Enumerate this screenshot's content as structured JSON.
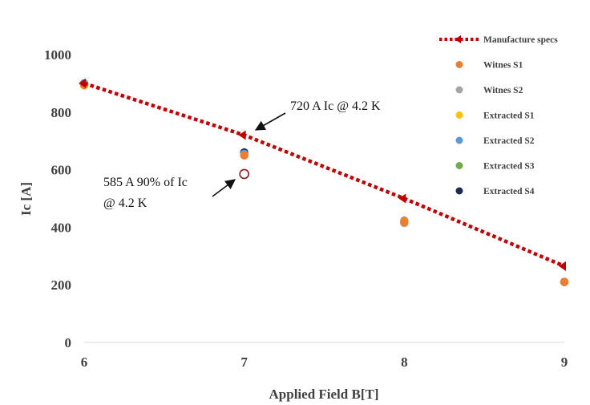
{
  "chart_data": {
    "type": "scatter",
    "title": "",
    "xlabel": "Applied Field B[T]",
    "ylabel": "Ic [A]",
    "xlim": [
      6,
      9
    ],
    "ylim": [
      0,
      1000
    ],
    "xticks": [
      6,
      7,
      8,
      9
    ],
    "yticks": [
      0,
      200,
      400,
      600,
      800,
      1000
    ],
    "legend_position": "top-right",
    "series": [
      {
        "name": "Manufacture specs",
        "style": "dotted-line-with-markers",
        "color": "#c00000",
        "x": [
          6,
          7,
          8,
          9
        ],
        "y": [
          900,
          720,
          500,
          265
        ]
      },
      {
        "name": "Witnes S1",
        "color": "#ed7d31",
        "x": [
          6,
          7,
          8,
          9
        ],
        "y": [
          895,
          650,
          418,
          210
        ]
      },
      {
        "name": "Witnes S2",
        "color": "#a5a5a5",
        "x": [
          6,
          7,
          8,
          9
        ],
        "y": [
          895,
          650,
          415,
          210
        ]
      },
      {
        "name": "Extracted S1",
        "color": "#ffc000",
        "x": [
          6,
          7,
          8,
          9
        ],
        "y": [
          893,
          650,
          420,
          210
        ]
      },
      {
        "name": "Extracted S2",
        "color": "#5b9bd5",
        "x": [
          6,
          7,
          8,
          9
        ],
        "y": [
          900,
          655,
          420,
          210
        ]
      },
      {
        "name": "Extracted S3",
        "color": "#70ad47",
        "x": [
          6,
          7,
          8,
          9
        ],
        "y": [
          893,
          652,
          420,
          210
        ]
      },
      {
        "name": "Extracted S4",
        "color": "#1f2a4e",
        "x": [
          6,
          7,
          8,
          9
        ],
        "y": [
          900,
          660,
          422,
          210
        ]
      }
    ],
    "extra_points": [
      {
        "name": "90% of Ic point",
        "x": 7,
        "y": 585,
        "style": "hollow-circle",
        "color": "#8b1a1a"
      }
    ],
    "annotations": [
      {
        "text": "720 A Ic @ 4.2 K",
        "points_to": [
          7,
          720
        ]
      },
      {
        "text_lines": [
          "585 A 90% of Ic",
          "@ 4.2 K"
        ],
        "points_to": [
          7,
          585
        ]
      }
    ]
  }
}
